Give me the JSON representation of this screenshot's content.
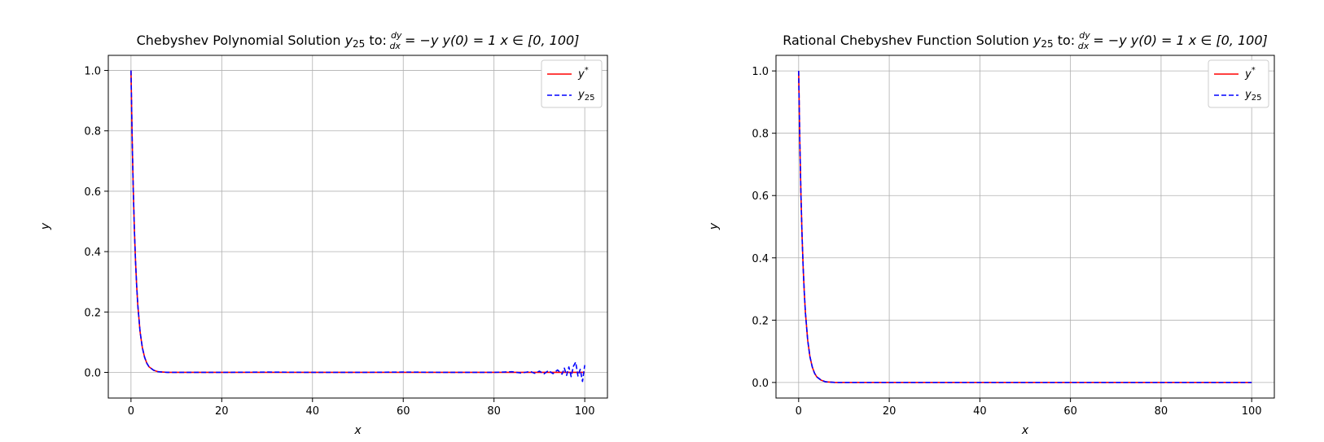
{
  "figure": {
    "charts": [
      {
        "title_parts": {
          "prefix": "Chebyshev Polynomial Solution ",
          "y": "y",
          "y_sub": "25",
          "to": " to: ",
          "frac_num": "dy",
          "frac_den": "dx",
          "eq": " = −y   y(0) = 1   x ∈ [0, 100]"
        }
      },
      {
        "title_parts": {
          "prefix": "Rational Chebyshev Function Solution ",
          "y": "y",
          "y_sub": "25",
          "to": " to: ",
          "frac_num": "dy",
          "frac_den": "dx",
          "eq": " = −y   y(0) = 1   x ∈ [0, 100]"
        }
      }
    ]
  },
  "chart_data": [
    {
      "type": "line",
      "title": "Chebyshev Polynomial Solution y25 to: dy/dx = −y   y(0) = 1   x ∈ [0, 100]",
      "xlabel": "x",
      "ylabel": "y",
      "xlim": [
        -5,
        105
      ],
      "ylim": [
        -0.085,
        1.05
      ],
      "xticks": [
        0,
        20,
        40,
        60,
        80,
        100
      ],
      "xtick_labels": [
        "0",
        "20",
        "40",
        "60",
        "80",
        "100"
      ],
      "yticks": [
        0.0,
        0.2,
        0.4,
        0.6,
        0.8,
        1.0
      ],
      "ytick_labels": [
        "0.0",
        "0.2",
        "0.4",
        "0.6",
        "0.8",
        "1.0"
      ],
      "grid": true,
      "legend": "top-right",
      "series": [
        {
          "name": "y*",
          "legend_main": "y",
          "legend_sup": "*",
          "color": "#ff0000",
          "style": "solid",
          "x": [
            0,
            0.25,
            0.5,
            0.75,
            1,
            1.25,
            1.5,
            2,
            2.5,
            3,
            3.5,
            4,
            5,
            6,
            7,
            8,
            10,
            20,
            40,
            60,
            80,
            100
          ],
          "y": [
            1.0,
            0.779,
            0.607,
            0.472,
            0.368,
            0.287,
            0.223,
            0.135,
            0.082,
            0.05,
            0.03,
            0.018,
            0.007,
            0.002,
            0.001,
            0.0,
            0.0,
            0.0,
            0.0,
            0.0,
            0.0,
            0.0
          ]
        },
        {
          "name": "y25",
          "legend_main": "y",
          "legend_sub": "25",
          "color": "#0000ff",
          "style": "dashed",
          "x": [
            0,
            0.25,
            0.5,
            0.75,
            1,
            1.25,
            1.5,
            2,
            2.5,
            3,
            3.5,
            4,
            5,
            6,
            7,
            8,
            10,
            20,
            30,
            40,
            50,
            60,
            70,
            80,
            84,
            86,
            88,
            89,
            90,
            91,
            92,
            93,
            94,
            95,
            95.5,
            96,
            96.5,
            97,
            97.5,
            98,
            98.5,
            99,
            99.5,
            100
          ],
          "y": [
            1.0,
            0.779,
            0.607,
            0.472,
            0.368,
            0.287,
            0.223,
            0.135,
            0.082,
            0.05,
            0.03,
            0.018,
            0.007,
            0.002,
            0.001,
            0.0,
            0.0,
            0.0,
            0.001,
            0.0,
            0.0,
            0.001,
            0.0,
            0.0,
            0.002,
            -0.002,
            0.003,
            -0.003,
            0.004,
            -0.005,
            0.006,
            -0.004,
            0.008,
            -0.006,
            0.014,
            -0.01,
            0.018,
            -0.014,
            0.02,
            0.034,
            -0.012,
            0.01,
            -0.03,
            0.024
          ]
        }
      ]
    },
    {
      "type": "line",
      "title": "Rational Chebyshev Function Solution y25 to: dy/dx = −y   y(0) = 1   x ∈ [0, 100]",
      "xlabel": "x",
      "ylabel": "y",
      "xlim": [
        -5,
        105
      ],
      "ylim": [
        -0.05,
        1.05
      ],
      "xticks": [
        0,
        20,
        40,
        60,
        80,
        100
      ],
      "xtick_labels": [
        "0",
        "20",
        "40",
        "60",
        "80",
        "100"
      ],
      "yticks": [
        0.0,
        0.2,
        0.4,
        0.6,
        0.8,
        1.0
      ],
      "ytick_labels": [
        "0.0",
        "0.2",
        "0.4",
        "0.6",
        "0.8",
        "1.0"
      ],
      "grid": true,
      "legend": "top-right",
      "series": [
        {
          "name": "y*",
          "legend_main": "y",
          "legend_sup": "*",
          "color": "#ff0000",
          "style": "solid",
          "x": [
            0,
            0.25,
            0.5,
            0.75,
            1,
            1.25,
            1.5,
            2,
            2.5,
            3,
            3.5,
            4,
            5,
            6,
            7,
            8,
            10,
            20,
            40,
            60,
            80,
            100
          ],
          "y": [
            1.0,
            0.779,
            0.607,
            0.472,
            0.368,
            0.287,
            0.223,
            0.135,
            0.082,
            0.05,
            0.03,
            0.018,
            0.007,
            0.002,
            0.001,
            0.0,
            0.0,
            0.0,
            0.0,
            0.0,
            0.0,
            0.0
          ]
        },
        {
          "name": "y25",
          "legend_main": "y",
          "legend_sub": "25",
          "color": "#0000ff",
          "style": "dashed",
          "x": [
            0,
            0.25,
            0.5,
            0.75,
            1,
            1.25,
            1.5,
            2,
            2.5,
            3,
            3.5,
            4,
            5,
            6,
            7,
            8,
            10,
            20,
            40,
            60,
            80,
            100
          ],
          "y": [
            1.0,
            0.779,
            0.607,
            0.472,
            0.368,
            0.287,
            0.223,
            0.135,
            0.082,
            0.05,
            0.03,
            0.018,
            0.007,
            0.002,
            0.001,
            0.0,
            0.0,
            0.0,
            0.0,
            0.0,
            0.0,
            0.0
          ]
        }
      ]
    }
  ]
}
